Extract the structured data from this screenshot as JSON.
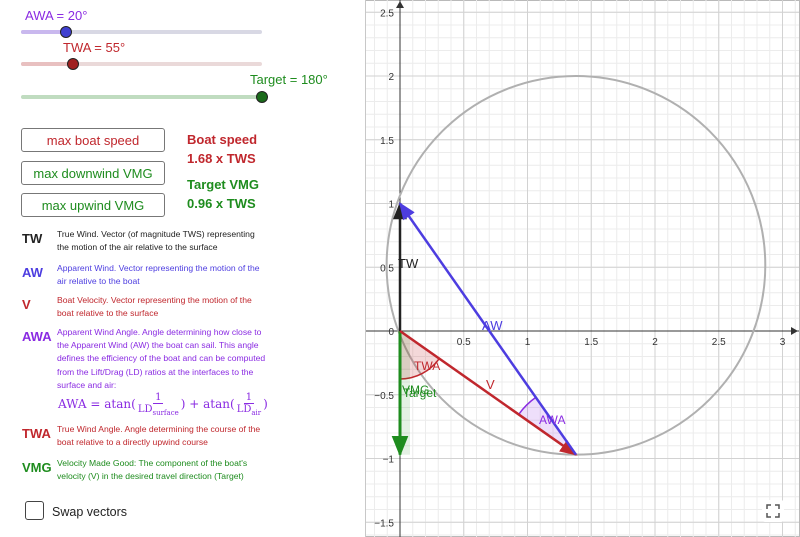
{
  "sliders": [
    {
      "label": "AWA = 20°",
      "color": "#8a2be2",
      "fill_color": "#c9b8ee",
      "knob_color": "#4040d0",
      "value": 20
    },
    {
      "label": "TWA = 55°",
      "color": "#c0272d",
      "fill_color": "#e8c0c0",
      "knob_color": "#a02020",
      "value": 55
    },
    {
      "label": "Target = 180°",
      "color": "#1e8c1e",
      "fill_color": "#c0dcc0",
      "knob_color": "#1a6a1a",
      "value": 180
    }
  ],
  "buttons": {
    "max_speed": {
      "label": "max boat speed",
      "color": "#c0272d"
    },
    "max_downwind": {
      "label": "max downwind VMG",
      "color": "#1e8c1e"
    },
    "max_upwind": {
      "label": "max upwind VMG",
      "color": "#1e8c1e"
    }
  },
  "results": {
    "boat_speed_title": "Boat speed",
    "boat_speed_value": "1.68 x TWS",
    "target_vmg_title": "Target VMG",
    "target_vmg_value": "0.96 x TWS"
  },
  "legend": [
    {
      "abbr": "TW",
      "color": "#222222",
      "text": "True Wind. Vector (of magnitude TWS) representing the motion of the air relative to the surface"
    },
    {
      "abbr": "AW",
      "color": "#4d3de0",
      "text": "Apparent Wind. Vector representing the motion of the air relative to the boat"
    },
    {
      "abbr": "V",
      "color": "#c0272d",
      "text": "Boat Velocity. Vector representing the motion of the boat relative to the surface"
    },
    {
      "abbr": "AWA",
      "color": "#8a2be2",
      "text": "Apparent Wind Angle. Angle determining how close to the Apparent Wind (AW) the boat can sail. This angle defines the efficiency of the boat and can be computed from the Lift/Drag (LD) ratios at the interfaces to the surface and air:"
    },
    {
      "abbr": "TWA",
      "color": "#c0272d",
      "text": "True Wind Angle. Angle determining the course of the boat relative to a directly upwind course"
    },
    {
      "abbr": "VMG",
      "color": "#1e8c1e",
      "text": "Velocity Made Good: The component of the boat's velocity (V) in the desired travel direction (Target)"
    }
  ],
  "formula": {
    "lhs": "AWA = ",
    "atan": "atan",
    "one": "1",
    "ld": "LD",
    "sub_surface": "surface",
    "sub_air": "air",
    "plus": "+"
  },
  "swap_label": "Swap vectors",
  "graph": {
    "x_ticks": [
      0.5,
      1,
      1.5,
      2,
      2.5,
      3
    ],
    "x_tick_labels": [
      "0.5",
      "1",
      "1.5",
      "2",
      "2.5",
      "3"
    ],
    "y_ticks": [
      2.5,
      2,
      1.5,
      1,
      0.5,
      -0.5,
      -1,
      -1.5
    ],
    "y_tick_labels": [
      "2.5",
      "2",
      "1.5",
      "1",
      "0.5",
      "−0.5",
      "−1",
      "−1.5"
    ],
    "origin_label": "0",
    "labels": {
      "tw": "TW",
      "aw": "AW",
      "v": "V",
      "twa": "TWA",
      "awa": "AWA",
      "vmg": "VMG",
      "target": "Target"
    },
    "vectors": {
      "tw": {
        "from": [
          0,
          0
        ],
        "to": [
          0,
          1
        ],
        "color": "#222222"
      },
      "aw": {
        "from": [
          1.38,
          -0.97
        ],
        "to": [
          0,
          1
        ],
        "color": "#4d3de0"
      },
      "v": {
        "from": [
          0,
          0
        ],
        "to": [
          1.38,
          -0.97
        ],
        "color": "#c0272d"
      },
      "vmg": {
        "from": [
          0,
          0
        ],
        "to": [
          0,
          -0.97
        ],
        "color": "#1e8c1e"
      }
    },
    "circle": {
      "center": [
        1.38,
        0.515
      ],
      "radius": 1.485,
      "color": "#b0b0b0"
    }
  }
}
